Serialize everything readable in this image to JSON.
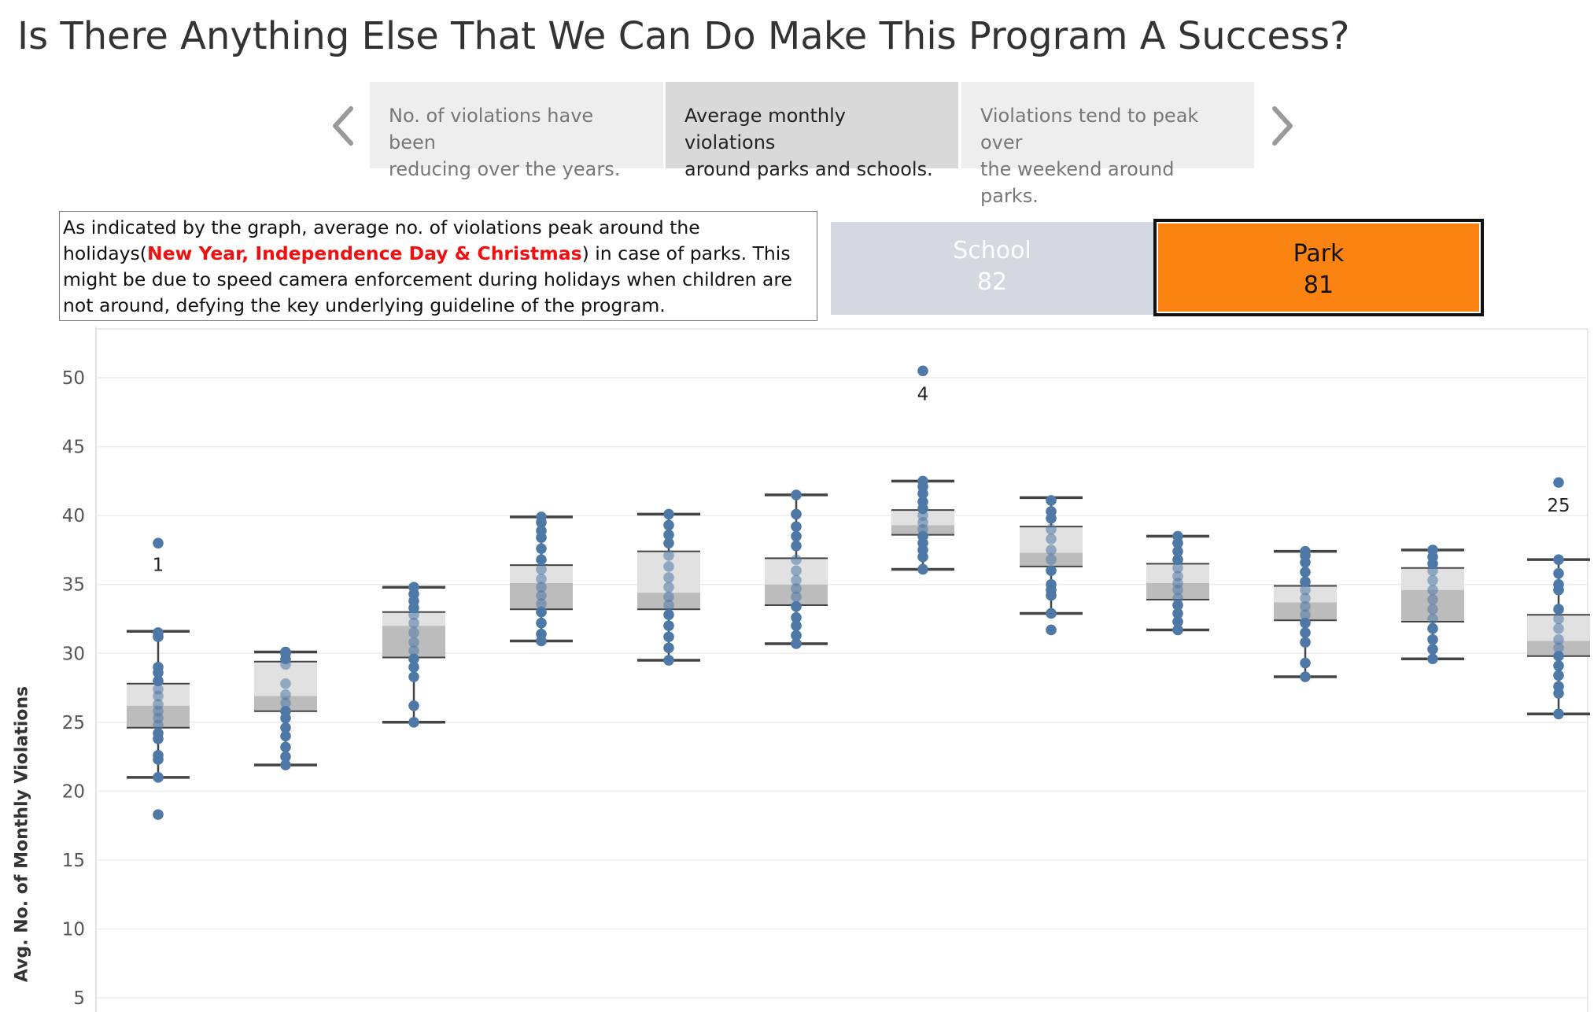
{
  "title": "Is There Anything Else That We Can Do Make This Program A Success?",
  "story": {
    "prev_icon": "chevron-left-icon",
    "next_icon": "chevron-right-icon",
    "points": [
      {
        "label_line1": "No. of violations have been",
        "label_line2": "reducing over the years.",
        "active": false
      },
      {
        "label_line1": "Average monthly violations",
        "label_line2": "around parks and schools.",
        "active": true
      },
      {
        "label_line1": "Violations tend to peak over",
        "label_line2": "the weekend around parks.",
        "active": false
      }
    ]
  },
  "note": {
    "part1": "As indicated by the graph, average no. of violations peak around the holidays(",
    "highlight": "New Year, Independence Day & Christmas",
    "part2": ") in case of parks. This might be due to speed camera enforcement during holidays when children are not around, defying the key underlying guideline of the program."
  },
  "filters": {
    "school": {
      "label": "School",
      "count": "82"
    },
    "park": {
      "label": "Park",
      "count": "81"
    }
  },
  "colors": {
    "dot": "#4e79a7",
    "box_upper": "#e1e1e1",
    "box_lower": "#bcbcbc",
    "whisker": "#444444",
    "park_accent": "#fb8311",
    "school_bg": "#d4d8e1"
  },
  "chart_data": {
    "type": "box-plot with jittered points",
    "ylabel": "Avg. No. of Monthly Violations",
    "ylim": [
      5,
      53
    ],
    "yticks": [
      5,
      10,
      15,
      20,
      25,
      30,
      35,
      40,
      45,
      50
    ],
    "grid": true,
    "boxes": [
      {
        "whisker_low": 21.0,
        "q1": 24.6,
        "median": 26.2,
        "q3": 27.8,
        "whisker_high": 31.6,
        "points": [
          18.3,
          21.0,
          22.3,
          22.6,
          23.8,
          24.2,
          24.8,
          25.3,
          25.8,
          26.3,
          26.9,
          27.4,
          28.0,
          28.6,
          29.0,
          31.2,
          31.5,
          38.0
        ],
        "annotation": "1",
        "annotation_value": 36.5
      },
      {
        "whisker_low": 21.9,
        "q1": 25.8,
        "median": 26.9,
        "q3": 29.4,
        "whisker_high": 30.1,
        "points": [
          21.9,
          22.5,
          23.2,
          24.0,
          24.6,
          25.3,
          25.8,
          26.4,
          27.0,
          27.8,
          29.2,
          29.6,
          30.0,
          30.1
        ]
      },
      {
        "whisker_low": 25.0,
        "q1": 29.7,
        "median": 32.0,
        "q3": 33.0,
        "whisker_high": 34.8,
        "points": [
          25.0,
          26.2,
          28.3,
          29.0,
          29.6,
          30.2,
          30.8,
          31.5,
          32.2,
          32.8,
          33.3,
          33.8,
          34.3,
          34.8
        ]
      },
      {
        "whisker_low": 30.9,
        "q1": 33.2,
        "median": 35.1,
        "q3": 36.4,
        "whisker_high": 39.9,
        "points": [
          30.9,
          31.4,
          32.2,
          33.0,
          33.6,
          34.2,
          34.8,
          35.4,
          36.1,
          36.8,
          37.6,
          38.4,
          38.9,
          39.5,
          39.9
        ]
      },
      {
        "whisker_low": 29.5,
        "q1": 33.2,
        "median": 34.4,
        "q3": 37.4,
        "whisker_high": 40.1,
        "points": [
          29.5,
          30.4,
          31.2,
          32.0,
          32.8,
          33.5,
          34.1,
          34.8,
          35.5,
          36.3,
          37.1,
          38.0,
          38.6,
          39.3,
          40.1
        ]
      },
      {
        "whisker_low": 30.7,
        "q1": 33.5,
        "median": 35.0,
        "q3": 36.9,
        "whisker_high": 41.5,
        "points": [
          30.7,
          31.3,
          32.0,
          32.6,
          33.4,
          34.1,
          34.7,
          35.3,
          36.0,
          36.8,
          37.8,
          38.5,
          39.2,
          40.1,
          41.5
        ]
      },
      {
        "whisker_low": 36.1,
        "q1": 38.6,
        "median": 39.3,
        "q3": 40.4,
        "whisker_high": 42.5,
        "points": [
          36.1,
          37.0,
          37.5,
          38.0,
          38.5,
          39.0,
          39.5,
          40.0,
          40.5,
          41.0,
          41.6,
          42.1,
          42.5,
          50.5
        ],
        "annotation": "4",
        "annotation_value": 48.9
      },
      {
        "whisker_low": 32.9,
        "q1": 36.3,
        "median": 37.3,
        "q3": 39.2,
        "whisker_high": 41.3,
        "points": [
          31.7,
          32.9,
          34.2,
          34.6,
          35.0,
          36.0,
          36.8,
          37.5,
          38.3,
          39.0,
          39.8,
          40.3,
          41.1
        ]
      },
      {
        "whisker_low": 31.7,
        "q1": 33.9,
        "median": 35.1,
        "q3": 36.5,
        "whisker_high": 38.5,
        "points": [
          31.7,
          32.3,
          32.9,
          33.5,
          34.0,
          34.6,
          35.1,
          35.6,
          36.2,
          36.8,
          37.4,
          38.0,
          38.5
        ]
      },
      {
        "whisker_low": 28.3,
        "q1": 32.4,
        "median": 33.7,
        "q3": 34.9,
        "whisker_high": 37.4,
        "points": [
          28.3,
          29.3,
          30.8,
          31.5,
          32.2,
          32.8,
          33.4,
          34.0,
          34.6,
          35.2,
          35.9,
          36.6,
          37.1,
          37.4
        ]
      },
      {
        "whisker_low": 29.6,
        "q1": 32.3,
        "median": 34.6,
        "q3": 36.2,
        "whisker_high": 37.5,
        "points": [
          29.6,
          30.3,
          31.0,
          31.8,
          32.5,
          33.2,
          33.9,
          34.6,
          35.3,
          36.0,
          36.5,
          37.0,
          37.5
        ]
      },
      {
        "whisker_low": 25.6,
        "q1": 29.8,
        "median": 30.9,
        "q3": 32.8,
        "whisker_high": 36.8,
        "points": [
          25.6,
          27.1,
          27.6,
          28.4,
          29.1,
          29.8,
          30.4,
          31.0,
          31.8,
          32.5,
          33.2,
          34.6,
          35.0,
          35.8,
          36.8,
          42.4
        ],
        "annotation": "25",
        "annotation_value": 40.8
      }
    ]
  }
}
